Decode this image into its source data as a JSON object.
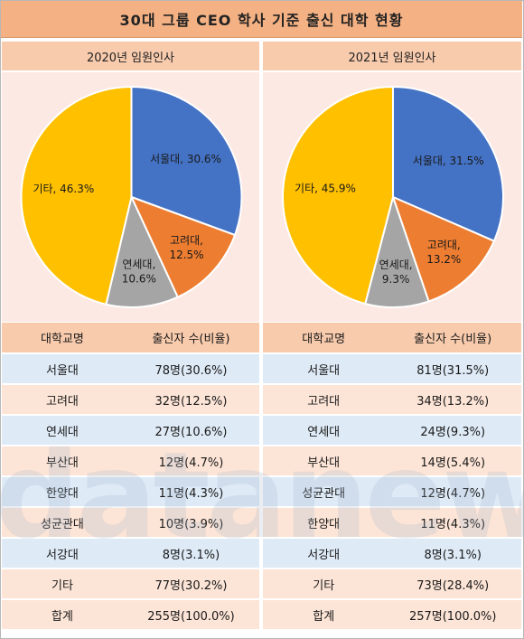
{
  "title": "30대 그룹 CEO 학사 기준 출신 대학 현황",
  "watermark": "datanews",
  "colors": {
    "seoul": "#4472c4",
    "korea": "#ed7d31",
    "yonsei": "#a5a5a5",
    "other": "#ffc000",
    "header": "#f8cbad",
    "title": "#f4b183",
    "pie_bg": "#fde9e4",
    "row_blue": "#deeaf6",
    "row_peach": "#fce4d6"
  },
  "panels": [
    {
      "heading": "2020년 임원인사",
      "table": {
        "headers": [
          "대학교명",
          "출신자 수(비율)"
        ],
        "rows": [
          [
            "서울대",
            "78명(30.6%)"
          ],
          [
            "고려대",
            "32명(12.5%)"
          ],
          [
            "연세대",
            "27명(10.6%)"
          ],
          [
            "부산대",
            "12명(4.7%)"
          ],
          [
            "한양대",
            "11명(4.3%)"
          ],
          [
            "성균관대",
            "10명(3.9%)"
          ],
          [
            "서강대",
            "8명(3.1%)"
          ],
          [
            "기타",
            "77명(30.2%)"
          ],
          [
            "합계",
            "255명(100.0%)"
          ]
        ]
      }
    },
    {
      "heading": "2021년 임원인사",
      "table": {
        "headers": [
          "대학교명",
          "출신자 수(비율)"
        ],
        "rows": [
          [
            "서울대",
            "81명(31.5%)"
          ],
          [
            "고려대",
            "34명(13.2%)"
          ],
          [
            "연세대",
            "24명(9.3%)"
          ],
          [
            "부산대",
            "14명(5.4%)"
          ],
          [
            "성균관대",
            "12명(4.7%)"
          ],
          [
            "한양대",
            "11명(4.3%)"
          ],
          [
            "서강대",
            "8명(3.1%)"
          ],
          [
            "기타",
            "73명(28.4%)"
          ],
          [
            "합계",
            "257명(100.0%)"
          ]
        ]
      }
    }
  ],
  "chart_data": [
    {
      "type": "pie",
      "title": "2020년 임원인사",
      "slices": [
        {
          "label": "서울대",
          "value": 30.6,
          "color": "#4472c4"
        },
        {
          "label": "고려대",
          "value": 12.5,
          "color": "#ed7d31"
        },
        {
          "label": "연세대",
          "value": 10.6,
          "color": "#a5a5a5"
        },
        {
          "label": "기타",
          "value": 46.3,
          "color": "#ffc000"
        }
      ],
      "data_labels": [
        "서울대, 30.6%",
        "고려대,|12.5%",
        "연세대,|10.6%",
        "기타, 46.3%"
      ]
    },
    {
      "type": "pie",
      "title": "2021년 임원인사",
      "slices": [
        {
          "label": "서울대",
          "value": 31.5,
          "color": "#4472c4"
        },
        {
          "label": "고려대",
          "value": 13.2,
          "color": "#ed7d31"
        },
        {
          "label": "연세대",
          "value": 9.3,
          "color": "#a5a5a5"
        },
        {
          "label": "기타",
          "value": 45.9,
          "color": "#ffc000"
        }
      ],
      "data_labels": [
        "서울대, 31.5%",
        "고려대,|13.2%",
        "연세대,|9.3%",
        "기타, 45.9%"
      ]
    }
  ]
}
